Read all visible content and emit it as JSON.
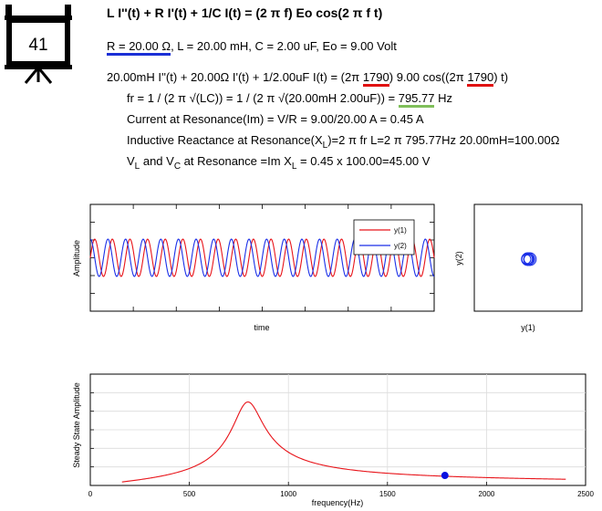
{
  "problem_number": "41",
  "title": "L I''(t) + R I'(t) + 1/C I(t) = (2 π f) Eo cos(2 π f t)",
  "params": {
    "r_part": "R = 20.00 Ω",
    "rest": ", L = 20.00 mH, C = 2.00 uF, Eo = 9.00 Volt"
  },
  "equation": {
    "part1": "20.00mH I''(t) + 20.00Ω I'(t) + 1/2.00uF I(t) = (2π ",
    "freq1": "1790",
    "part2": ") 9.00 cos((2π ",
    "freq2": "1790",
    "part3": ") t)"
  },
  "resonance": {
    "fr_prefix": "fr = 1 / (2 π √(LC)) = 1 / (2 π √(20.00mH 2.00uF)) = ",
    "fr_value": "795.77",
    "fr_unit": " Hz",
    "current": "Current at Resonance(Im) = V/R = 9.00/20.00 A = 0.45 A",
    "react_a": "Inductive Reactance at Resonance(X",
    "react_sub": "L",
    "react_b": ")=2 π fr L=2 π 795.77Hz 20.00mH=100.00Ω",
    "v_a": "V",
    "v_sub1": "L",
    "v_b": " and V",
    "v_sub2": "C",
    "v_c": " at Resonance =Im X",
    "v_sub3": "L",
    "v_d": " = 0.45 x 100.00=45.00 V"
  },
  "colors": {
    "series1": "#e8141a",
    "series2": "#1a2fe8",
    "marker": "#0a10e0",
    "underline_blue": "#1a2fd6",
    "underline_red": "#e01010",
    "underline_green": "#7fbf5a"
  },
  "chart_data": [
    {
      "type": "line",
      "title": "",
      "xlabel": "time",
      "ylabel": "Amplitude",
      "grid": false,
      "legend": "top-right",
      "series": [
        {
          "name": "y(1)",
          "color": "#e8141a",
          "cycles": 19.5,
          "phase": 0.0,
          "amplitude": 0.35
        },
        {
          "name": "y(2)",
          "color": "#1a2fe8",
          "cycles": 19.5,
          "phase": 1.57,
          "amplitude": 0.35
        }
      ],
      "ylim": [
        -1,
        1
      ]
    },
    {
      "type": "scatter",
      "title": "",
      "xlabel": "y(1)",
      "ylabel": "y(2)",
      "grid": false,
      "shape": "small closed loops near center",
      "xlim": [
        -1,
        1
      ],
      "ylim": [
        -1,
        1
      ]
    },
    {
      "type": "line",
      "title": "",
      "xlabel": "frequency(Hz)",
      "ylabel": "Steady State Amplitude",
      "grid": true,
      "x_ticks": [
        "0",
        "500",
        "1000",
        "1500",
        "2000",
        "2500"
      ],
      "xlim": [
        0,
        2500
      ],
      "ylim": [
        0,
        0.6
      ],
      "series": [
        {
          "name": "",
          "color": "#e8141a",
          "x_start": 160,
          "x_end": 2400,
          "resonance": 795.77,
          "peak": 0.45
        }
      ],
      "marker": {
        "x": 1790,
        "y": 0.054
      }
    }
  ]
}
